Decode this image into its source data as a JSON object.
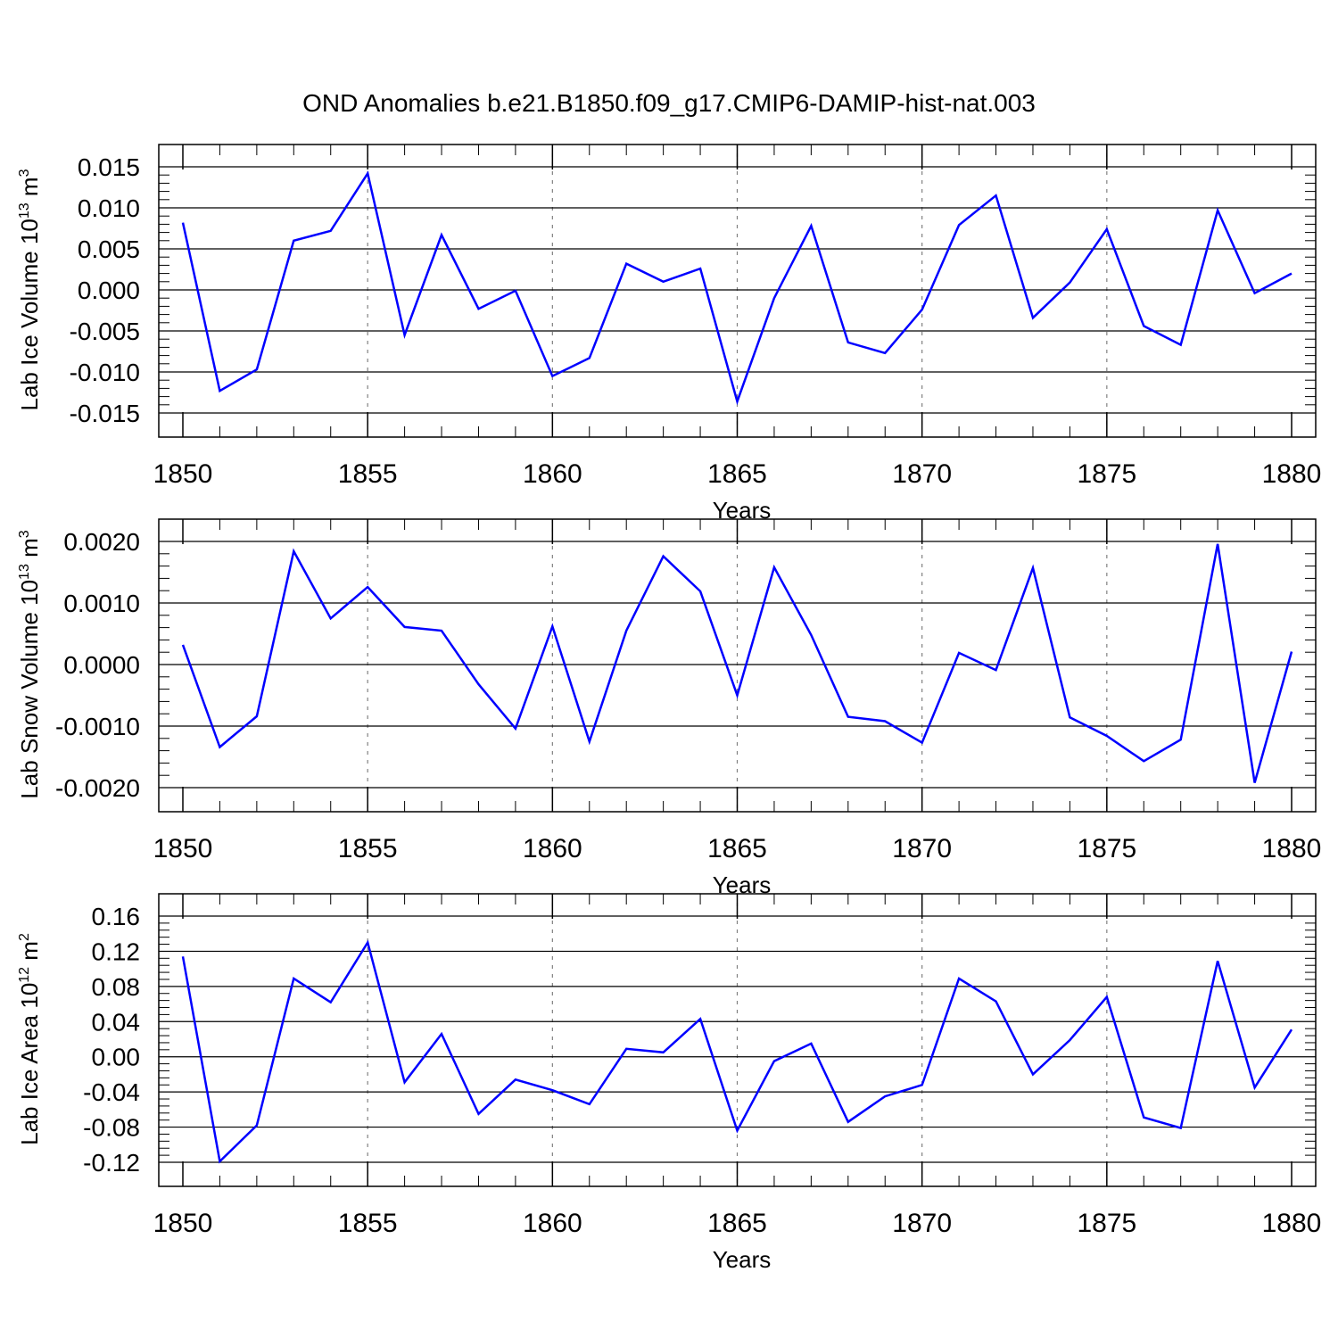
{
  "figure": {
    "title": "OND Anomalies b.e21.B1850.f09_g17.CMIP6-DAMIP-hist-nat.003"
  },
  "style": {
    "line_color": "#0000ff",
    "axis_color": "#000000",
    "grid_color": "#808080"
  },
  "chart_data": [
    {
      "type": "line",
      "ylabel": {
        "text": "Lab Ice Volume 10",
        "sup": "13",
        "unit": " m",
        "unit_sup": "3"
      },
      "xlabel": "Years",
      "x": [
        1850,
        1851,
        1852,
        1853,
        1854,
        1855,
        1856,
        1857,
        1858,
        1859,
        1860,
        1861,
        1862,
        1863,
        1864,
        1865,
        1866,
        1867,
        1868,
        1869,
        1870,
        1871,
        1872,
        1873,
        1874,
        1875,
        1876,
        1877,
        1878,
        1879,
        1880
      ],
      "xlim": [
        1850,
        1880
      ],
      "xticks": [
        1850,
        1855,
        1860,
        1865,
        1870,
        1875,
        1880
      ],
      "xtick_labels": [
        "1850",
        "1855",
        "1860",
        "1865",
        "1870",
        "1875",
        "1880"
      ],
      "ylim": [
        -0.015,
        0.015
      ],
      "yticks": [
        -0.015,
        -0.01,
        -0.005,
        0.0,
        0.005,
        0.01,
        0.015
      ],
      "ytick_labels": [
        "-0.015",
        "-0.010",
        "-0.005",
        "0.000",
        "0.005",
        "0.010",
        "0.015"
      ],
      "series": [
        {
          "values": [
            0.0082,
            -0.0123,
            -0.0097,
            0.006,
            0.0072,
            0.0142,
            -0.0055,
            0.0067,
            -0.0023,
            -0.0001,
            -0.0105,
            -0.0083,
            0.0032,
            0.001,
            0.0026,
            -0.0136,
            -0.001,
            0.0078,
            -0.0064,
            -0.0077,
            -0.0024,
            0.0079,
            0.0115,
            -0.0034,
            0.0009,
            0.0074,
            -0.0044,
            -0.0067,
            0.0097,
            -0.0004,
            0.002
          ]
        }
      ],
      "grid": "vertical dashed at major x ticks"
    },
    {
      "type": "line",
      "ylabel": {
        "text": "Lab Snow Volume 10",
        "sup": "13",
        "unit": " m",
        "unit_sup": "3"
      },
      "xlabel": "Years",
      "x": [
        1850,
        1851,
        1852,
        1853,
        1854,
        1855,
        1856,
        1857,
        1858,
        1859,
        1860,
        1861,
        1862,
        1863,
        1864,
        1865,
        1866,
        1867,
        1868,
        1869,
        1870,
        1871,
        1872,
        1873,
        1874,
        1875,
        1876,
        1877,
        1878,
        1879,
        1880
      ],
      "xlim": [
        1850,
        1880
      ],
      "xticks": [
        1850,
        1855,
        1860,
        1865,
        1870,
        1875,
        1880
      ],
      "xtick_labels": [
        "1850",
        "1855",
        "1860",
        "1865",
        "1870",
        "1875",
        "1880"
      ],
      "ylim": [
        -0.002,
        0.002
      ],
      "yticks": [
        -0.002,
        -0.001,
        0.0,
        0.001,
        0.002
      ],
      "ytick_labels": [
        "-0.0020",
        "-0.0010",
        "0.0000",
        "0.0010",
        "0.0020"
      ],
      "series": [
        {
          "values": [
            0.00032,
            -0.00134,
            -0.00084,
            0.00184,
            0.00075,
            0.00126,
            0.00061,
            0.00055,
            -0.00032,
            -0.00104,
            0.00062,
            -0.00125,
            0.00055,
            0.00176,
            0.00119,
            -0.0005,
            0.00158,
            0.00048,
            -0.00085,
            -0.00092,
            -0.00127,
            0.00019,
            -9e-05,
            0.00157,
            -0.00086,
            -0.00116,
            -0.00157,
            -0.00122,
            0.00196,
            -0.00192,
            0.00021
          ]
        }
      ],
      "grid": "vertical dashed at major x ticks"
    },
    {
      "type": "line",
      "ylabel": {
        "text": "Lab Ice Area 10",
        "sup": "12",
        "unit": " m",
        "unit_sup": "2"
      },
      "xlabel": "Years",
      "x": [
        1850,
        1851,
        1852,
        1853,
        1854,
        1855,
        1856,
        1857,
        1858,
        1859,
        1860,
        1861,
        1862,
        1863,
        1864,
        1865,
        1866,
        1867,
        1868,
        1869,
        1870,
        1871,
        1872,
        1873,
        1874,
        1875,
        1876,
        1877,
        1878,
        1879,
        1880
      ],
      "xlim": [
        1850,
        1880
      ],
      "xticks": [
        1850,
        1855,
        1860,
        1865,
        1870,
        1875,
        1880
      ],
      "xtick_labels": [
        "1850",
        "1855",
        "1860",
        "1865",
        "1870",
        "1875",
        "1880"
      ],
      "ylim": [
        -0.12,
        0.16
      ],
      "yticks": [
        -0.12,
        -0.08,
        -0.04,
        0.0,
        0.04,
        0.08,
        0.12,
        0.16
      ],
      "ytick_labels": [
        "-0.12",
        "-0.08",
        "-0.04",
        "0.00",
        "0.04",
        "0.08",
        "0.12",
        "0.16"
      ],
      "series": [
        {
          "values": [
            0.114,
            -0.119,
            -0.078,
            0.089,
            0.062,
            0.13,
            -0.029,
            0.026,
            -0.065,
            -0.026,
            -0.038,
            -0.054,
            0.009,
            0.005,
            0.043,
            -0.084,
            -0.005,
            0.015,
            -0.074,
            -0.045,
            -0.032,
            0.089,
            0.063,
            -0.02,
            0.019,
            0.068,
            -0.069,
            -0.081,
            0.109,
            -0.035,
            0.031
          ]
        }
      ],
      "grid": "vertical dashed at major x ticks"
    }
  ]
}
